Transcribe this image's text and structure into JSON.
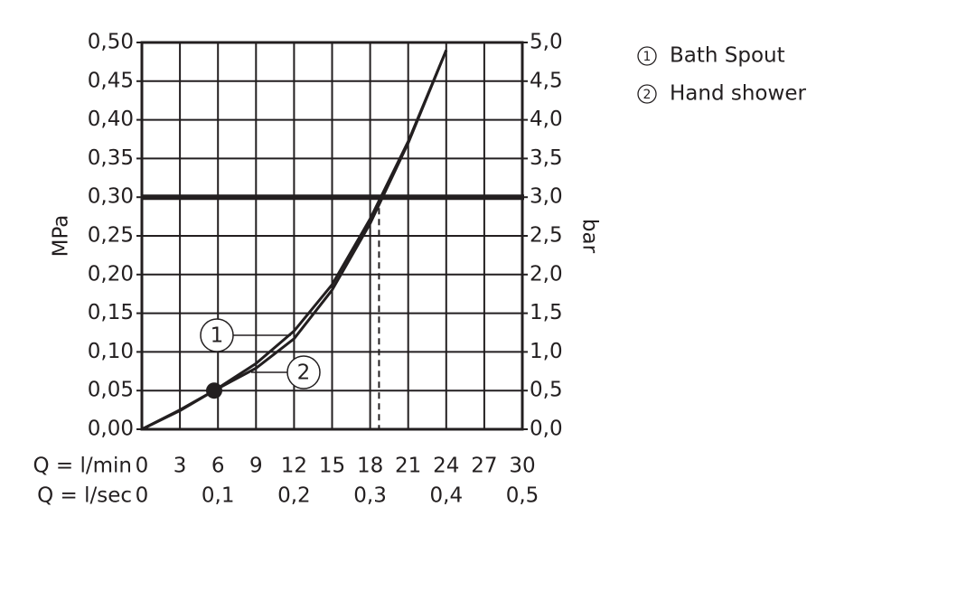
{
  "chart_data": {
    "type": "line",
    "x": [
      0,
      3,
      5.7,
      9,
      12,
      15,
      18,
      21,
      24
    ],
    "xlim": [
      0,
      30
    ],
    "xticks": [
      0,
      3,
      6,
      9,
      12,
      15,
      18,
      21,
      24,
      27,
      30
    ],
    "x_label": "Q = l/min",
    "x2_label": "Q = l/sec",
    "x2lim": [
      0,
      0.5
    ],
    "x2ticks": [
      0,
      {
        "value": 0.1,
        "label": "0,1"
      },
      {
        "value": 0.2,
        "label": "0,2"
      },
      {
        "value": 0.3,
        "label": "0,3"
      },
      {
        "value": 0.4,
        "label": "0,4"
      },
      {
        "value": 0.5,
        "label": "0,5"
      }
    ],
    "ylim": [
      0,
      0.5
    ],
    "yticks": [
      {
        "value": 0,
        "label": "0,00"
      },
      {
        "value": 0.05,
        "label": "0,05"
      },
      {
        "value": 0.1,
        "label": "0,10"
      },
      {
        "value": 0.15,
        "label": "0,15"
      },
      {
        "value": 0.2,
        "label": "0,20"
      },
      {
        "value": 0.25,
        "label": "0,25"
      },
      {
        "value": 0.3,
        "label": "0,30"
      },
      {
        "value": 0.35,
        "label": "0,35"
      },
      {
        "value": 0.4,
        "label": "0,40"
      },
      {
        "value": 0.45,
        "label": "0,45"
      },
      {
        "value": 0.5,
        "label": "0,50"
      }
    ],
    "y_label": "MPa",
    "y2lim": [
      0,
      5
    ],
    "y2ticks": [
      {
        "value": 0,
        "label": "0,0"
      },
      {
        "value": 0.5,
        "label": "0,5"
      },
      {
        "value": 1,
        "label": "1,0"
      },
      {
        "value": 1.5,
        "label": "1,5"
      },
      {
        "value": 2,
        "label": "2,0"
      },
      {
        "value": 2.5,
        "label": "2,5"
      },
      {
        "value": 3,
        "label": "3,0"
      },
      {
        "value": 3.5,
        "label": "3,5"
      },
      {
        "value": 4,
        "label": "4,0"
      },
      {
        "value": 4.5,
        "label": "4,5"
      },
      {
        "value": 5,
        "label": "5,0"
      }
    ],
    "y2_label": "bar",
    "grid": true,
    "series": [
      {
        "name": "Bath Spout",
        "label": "1",
        "color": "#231f20",
        "values": [
          0,
          0.025,
          0.05,
          0.085,
          0.127,
          0.187,
          0.272,
          0.372,
          0.49
        ]
      },
      {
        "name": "Hand shower",
        "label": "2",
        "color": "#231f20",
        "values": [
          0,
          0.024,
          0.05,
          0.079,
          0.117,
          0.18,
          0.266,
          0.37,
          0.49
        ]
      }
    ],
    "reference_line": {
      "y": 0.3
    },
    "dashed_line": {
      "x": 18.7
    },
    "point": {
      "x": 5.7,
      "y": 0.05
    }
  }
}
